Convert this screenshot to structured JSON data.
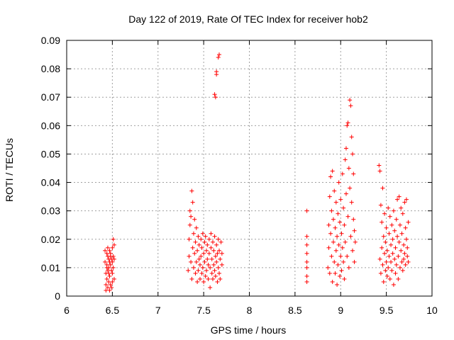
{
  "chart_data": {
    "type": "scatter",
    "title": "Day 122 of 2019, Rate Of TEC Index for receiver hob2",
    "xlabel": "GPS time / hours",
    "ylabel": "ROTI / TECUs",
    "xlim": [
      6,
      10
    ],
    "ylim": [
      0,
      0.09
    ],
    "xticks": [
      6,
      6.5,
      7,
      7.5,
      8,
      8.5,
      9,
      9.5,
      10
    ],
    "xtick_labels": [
      "6",
      "6.5",
      "7",
      "7.5",
      "8",
      "8.5",
      "9",
      "9.5",
      "10"
    ],
    "yticks": [
      0,
      0.01,
      0.02,
      0.03,
      0.04,
      0.05,
      0.06,
      0.07,
      0.08,
      0.09
    ],
    "ytick_labels": [
      "0",
      "0.01",
      "0.02",
      "0.03",
      "0.04",
      "0.05",
      "0.06",
      "0.07",
      "0.08",
      "0.09"
    ],
    "grid": true,
    "marker": "+",
    "color": "#ff0000",
    "series": [
      {
        "name": "ROTI",
        "points": [
          [
            6.42,
            0.016
          ],
          [
            6.42,
            0.012
          ],
          [
            6.43,
            0.008
          ],
          [
            6.43,
            0.004
          ],
          [
            6.43,
            0.002
          ],
          [
            6.44,
            0.015
          ],
          [
            6.44,
            0.011
          ],
          [
            6.44,
            0.006
          ],
          [
            6.45,
            0.014
          ],
          [
            6.45,
            0.009
          ],
          [
            6.45,
            0.003
          ],
          [
            6.46,
            0.013
          ],
          [
            6.46,
            0.01
          ],
          [
            6.46,
            0.005
          ],
          [
            6.47,
            0.016
          ],
          [
            6.47,
            0.012
          ],
          [
            6.47,
            0.007
          ],
          [
            6.48,
            0.011
          ],
          [
            6.48,
            0.004
          ],
          [
            6.48,
            0.015
          ],
          [
            6.49,
            0.009
          ],
          [
            6.49,
            0.013
          ],
          [
            6.49,
            0.003
          ],
          [
            6.5,
            0.017
          ],
          [
            6.5,
            0.012
          ],
          [
            6.5,
            0.008
          ],
          [
            6.51,
            0.02
          ],
          [
            6.51,
            0.014
          ],
          [
            6.51,
            0.01
          ],
          [
            6.52,
            0.018
          ],
          [
            6.52,
            0.006
          ],
          [
            6.52,
            0.013
          ],
          [
            6.44,
            0.01
          ],
          [
            6.46,
            0.008
          ],
          [
            6.48,
            0.014
          ],
          [
            6.5,
            0.005
          ],
          [
            6.47,
            0.002
          ],
          [
            6.45,
            0.017
          ],
          [
            7.33,
            0.009
          ],
          [
            7.34,
            0.014
          ],
          [
            7.34,
            0.02
          ],
          [
            7.35,
            0.025
          ],
          [
            7.35,
            0.03
          ],
          [
            7.36,
            0.028
          ],
          [
            7.36,
            0.012
          ],
          [
            7.37,
            0.037
          ],
          [
            7.37,
            0.006
          ],
          [
            7.38,
            0.017
          ],
          [
            7.38,
            0.033
          ],
          [
            7.39,
            0.022
          ],
          [
            7.39,
            0.01
          ],
          [
            7.4,
            0.027
          ],
          [
            7.4,
            0.015
          ],
          [
            7.41,
            0.008
          ],
          [
            7.41,
            0.019
          ],
          [
            7.42,
            0.012
          ],
          [
            7.42,
            0.024
          ],
          [
            7.43,
            0.005
          ],
          [
            7.43,
            0.016
          ],
          [
            7.44,
            0.021
          ],
          [
            7.44,
            0.009
          ],
          [
            7.45,
            0.013
          ],
          [
            7.45,
            0.018
          ],
          [
            7.46,
            0.006
          ],
          [
            7.46,
            0.011
          ],
          [
            7.47,
            0.02
          ],
          [
            7.47,
            0.014
          ],
          [
            7.48,
            0.008
          ],
          [
            7.48,
            0.017
          ],
          [
            7.49,
            0.022
          ],
          [
            7.49,
            0.01
          ],
          [
            7.5,
            0.005
          ],
          [
            7.5,
            0.015
          ],
          [
            7.51,
            0.019
          ],
          [
            7.51,
            0.012
          ],
          [
            7.52,
            0.007
          ],
          [
            7.52,
            0.021
          ],
          [
            7.53,
            0.016
          ],
          [
            7.53,
            0.009
          ],
          [
            7.54,
            0.013
          ],
          [
            7.54,
            0.018
          ],
          [
            7.55,
            0.006
          ],
          [
            7.55,
            0.011
          ],
          [
            7.56,
            0.02
          ],
          [
            7.56,
            0.015
          ],
          [
            7.57,
            0.003
          ],
          [
            7.57,
            0.01
          ],
          [
            7.58,
            0.017
          ],
          [
            7.58,
            0.022
          ],
          [
            7.59,
            0.008
          ],
          [
            7.59,
            0.013
          ],
          [
            7.6,
            0.019
          ],
          [
            7.6,
            0.006
          ],
          [
            7.61,
            0.011
          ],
          [
            7.61,
            0.016
          ],
          [
            7.62,
            0.009
          ],
          [
            7.62,
            0.021
          ],
          [
            7.63,
            0.014
          ],
          [
            7.63,
            0.007
          ],
          [
            7.64,
            0.018
          ],
          [
            7.64,
            0.012
          ],
          [
            7.65,
            0.005
          ],
          [
            7.65,
            0.015
          ],
          [
            7.66,
            0.02
          ],
          [
            7.66,
            0.01
          ],
          [
            7.67,
            0.008
          ],
          [
            7.67,
            0.016
          ],
          [
            7.68,
            0.013
          ],
          [
            7.68,
            0.006
          ],
          [
            7.69,
            0.019
          ],
          [
            7.7,
            0.011
          ],
          [
            7.7,
            0.015
          ],
          [
            7.62,
            0.071
          ],
          [
            7.63,
            0.07
          ],
          [
            7.64,
            0.079
          ],
          [
            7.64,
            0.078
          ],
          [
            7.66,
            0.084
          ],
          [
            7.67,
            0.085
          ],
          [
            8.63,
            0.03
          ],
          [
            8.63,
            0.021
          ],
          [
            8.63,
            0.018
          ],
          [
            8.63,
            0.015
          ],
          [
            8.63,
            0.012
          ],
          [
            8.63,
            0.01
          ],
          [
            8.63,
            0.007
          ],
          [
            8.63,
            0.005
          ],
          [
            8.86,
            0.01
          ],
          [
            8.87,
            0.017
          ],
          [
            8.87,
            0.025
          ],
          [
            8.88,
            0.035
          ],
          [
            8.88,
            0.008
          ],
          [
            8.89,
            0.042
          ],
          [
            8.89,
            0.022
          ],
          [
            8.9,
            0.014
          ],
          [
            8.9,
            0.03
          ],
          [
            8.91,
            0.005
          ],
          [
            8.91,
            0.044
          ],
          [
            8.92,
            0.019
          ],
          [
            8.92,
            0.027
          ],
          [
            8.93,
            0.012
          ],
          [
            8.93,
            0.037
          ],
          [
            8.94,
            0.008
          ],
          [
            8.94,
            0.024
          ],
          [
            8.95,
            0.016
          ],
          [
            8.95,
            0.033
          ],
          [
            8.96,
            0.004
          ],
          [
            8.96,
            0.021
          ],
          [
            8.97,
            0.029
          ],
          [
            8.97,
            0.011
          ],
          [
            8.98,
            0.04
          ],
          [
            8.98,
            0.018
          ],
          [
            8.99,
            0.026
          ],
          [
            8.99,
            0.007
          ],
          [
            9.0,
            0.014
          ],
          [
            9.0,
            0.034
          ],
          [
            9.01,
            0.022
          ],
          [
            9.01,
            0.009
          ],
          [
            9.02,
            0.043
          ],
          [
            9.02,
            0.017
          ],
          [
            9.03,
            0.012
          ],
          [
            9.03,
            0.031
          ],
          [
            9.04,
            0.025
          ],
          [
            9.04,
            0.006
          ],
          [
            9.05,
            0.048
          ],
          [
            9.05,
            0.019
          ],
          [
            9.06,
            0.052
          ],
          [
            9.06,
            0.036
          ],
          [
            9.07,
            0.06
          ],
          [
            9.07,
            0.014
          ],
          [
            9.08,
            0.061
          ],
          [
            9.08,
            0.028
          ],
          [
            9.09,
            0.045
          ],
          [
            9.09,
            0.01
          ],
          [
            9.1,
            0.069
          ],
          [
            9.1,
            0.038
          ],
          [
            9.11,
            0.067
          ],
          [
            9.11,
            0.021
          ],
          [
            9.12,
            0.056
          ],
          [
            9.12,
            0.033
          ],
          [
            9.13,
            0.05
          ],
          [
            9.13,
            0.016
          ],
          [
            9.14,
            0.043
          ],
          [
            9.14,
            0.027
          ],
          [
            9.15,
            0.012
          ],
          [
            9.15,
            0.023
          ],
          [
            9.16,
            0.019
          ],
          [
            9.42,
            0.046
          ],
          [
            9.43,
            0.044
          ],
          [
            9.43,
            0.013
          ],
          [
            9.44,
            0.032
          ],
          [
            9.44,
            0.008
          ],
          [
            9.45,
            0.026
          ],
          [
            9.45,
            0.017
          ],
          [
            9.46,
            0.011
          ],
          [
            9.46,
            0.038
          ],
          [
            9.47,
            0.005
          ],
          [
            9.47,
            0.021
          ],
          [
            9.48,
            0.015
          ],
          [
            9.48,
            0.029
          ],
          [
            9.49,
            0.009
          ],
          [
            9.49,
            0.019
          ],
          [
            9.5,
            0.024
          ],
          [
            9.5,
            0.012
          ],
          [
            9.51,
            0.007
          ],
          [
            9.51,
            0.016
          ],
          [
            9.52,
            0.031
          ],
          [
            9.52,
            0.01
          ],
          [
            9.53,
            0.022
          ],
          [
            9.53,
            0.014
          ],
          [
            9.54,
            0.028
          ],
          [
            9.54,
            0.006
          ],
          [
            9.55,
            0.018
          ],
          [
            9.55,
            0.012
          ],
          [
            9.56,
            0.025
          ],
          [
            9.56,
            0.009
          ],
          [
            9.57,
            0.02
          ],
          [
            9.57,
            0.015
          ],
          [
            9.58,
            0.03
          ],
          [
            9.58,
            0.004
          ],
          [
            9.59,
            0.013
          ],
          [
            9.59,
            0.023
          ],
          [
            9.6,
            0.017
          ],
          [
            9.6,
            0.008
          ],
          [
            9.61,
            0.027
          ],
          [
            9.61,
            0.011
          ],
          [
            9.62,
            0.021
          ],
          [
            9.62,
            0.034
          ],
          [
            9.63,
            0.014
          ],
          [
            9.63,
            0.006
          ],
          [
            9.64,
            0.035
          ],
          [
            9.64,
            0.019
          ],
          [
            9.65,
            0.01
          ],
          [
            9.65,
            0.025
          ],
          [
            9.66,
            0.016
          ],
          [
            9.66,
            0.031
          ],
          [
            9.67,
            0.012
          ],
          [
            9.67,
            0.022
          ],
          [
            9.68,
            0.009
          ],
          [
            9.68,
            0.029
          ],
          [
            9.69,
            0.018
          ],
          [
            9.69,
            0.013
          ],
          [
            9.7,
            0.033
          ],
          [
            9.7,
            0.015
          ],
          [
            9.71,
            0.011
          ],
          [
            9.71,
            0.024
          ],
          [
            9.72,
            0.02
          ],
          [
            9.72,
            0.034
          ],
          [
            9.73,
            0.014
          ],
          [
            9.73,
            0.017
          ],
          [
            9.74,
            0.012
          ],
          [
            9.74,
            0.026
          ]
        ]
      }
    ]
  }
}
